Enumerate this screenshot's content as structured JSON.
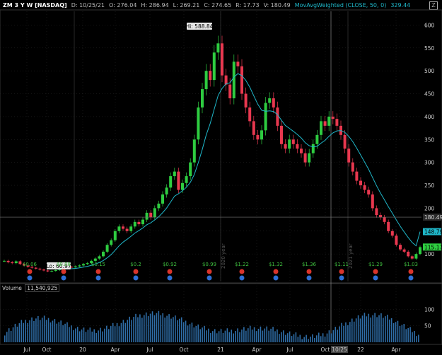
{
  "header": {
    "symbol": "ZM 3 Y W [NASDAQ]",
    "date": "D: 10/25/21",
    "open": "O: 276.04",
    "high": "H: 286.94",
    "low": "L: 269.21",
    "close": "C: 274.65",
    "range": "R: 17.73",
    "volume_label": "V: 180.49",
    "ma_label": "MovAvgWeighted (CLOSE, 50, 0)",
    "ma_value": "329.44"
  },
  "callouts": {
    "hi": "Hi: 588.84",
    "lo": "Lo: 60.97"
  },
  "price_badges": {
    "last": "180.49",
    "ma": "148.79",
    "current": "115.17"
  },
  "price_axis": [
    "600",
    "550",
    "500",
    "450",
    "400",
    "350",
    "300",
    "250",
    "200",
    "150",
    "100"
  ],
  "time_axis": [
    "Jul",
    "Oct",
    "20",
    "Apr",
    "Jul",
    "Oct",
    "21",
    "Apr",
    "Jul",
    "Oct",
    "10/25",
    "22",
    "Apr"
  ],
  "year_marks": [
    "2020 year",
    "2021 year"
  ],
  "dividends": [
    "$0.06",
    "$0.08",
    "$0.15",
    "$0.2",
    "$0.92",
    "$0.99",
    "$1.22",
    "$1.32",
    "$1.36",
    "$1.11",
    "$1.29",
    "$1.03"
  ],
  "volume": {
    "title": "Volume",
    "value": "11,540,925",
    "axis": [
      "100",
      "50"
    ]
  },
  "colors": {
    "up": "#2ecc40",
    "down": "#e8384f",
    "ma": "#1fb7c9",
    "bg": "#000000",
    "grid": "#2a2a2a"
  },
  "chart_data": {
    "type": "candlestick",
    "y_range": [
      40,
      630
    ],
    "x_range": [
      "2019-07",
      "2022-06"
    ],
    "close_weekly": [
      85,
      82,
      80,
      84,
      78,
      75,
      72,
      70,
      68,
      66,
      64,
      62,
      63,
      65,
      68,
      70,
      72,
      71,
      73,
      75,
      78,
      80,
      85,
      90,
      95,
      105,
      120,
      130,
      150,
      160,
      155,
      150,
      160,
      170,
      165,
      175,
      190,
      180,
      200,
      210,
      230,
      245,
      270,
      280,
      240,
      255,
      270,
      300,
      350,
      420,
      460,
      500,
      480,
      540,
      560,
      490,
      470,
      440,
      520,
      510,
      450,
      420,
      390,
      360,
      350,
      370,
      430,
      440,
      420,
      380,
      340,
      330,
      350,
      340,
      330,
      320,
      300,
      320,
      340,
      360,
      390,
      380,
      400,
      395,
      380,
      360,
      330,
      300,
      280,
      260,
      250,
      240,
      230,
      200,
      185,
      180,
      170,
      150,
      140,
      120,
      110,
      105,
      95,
      90,
      100,
      115
    ],
    "moving_average_end": 148.79,
    "volume_axis_max": 150
  }
}
